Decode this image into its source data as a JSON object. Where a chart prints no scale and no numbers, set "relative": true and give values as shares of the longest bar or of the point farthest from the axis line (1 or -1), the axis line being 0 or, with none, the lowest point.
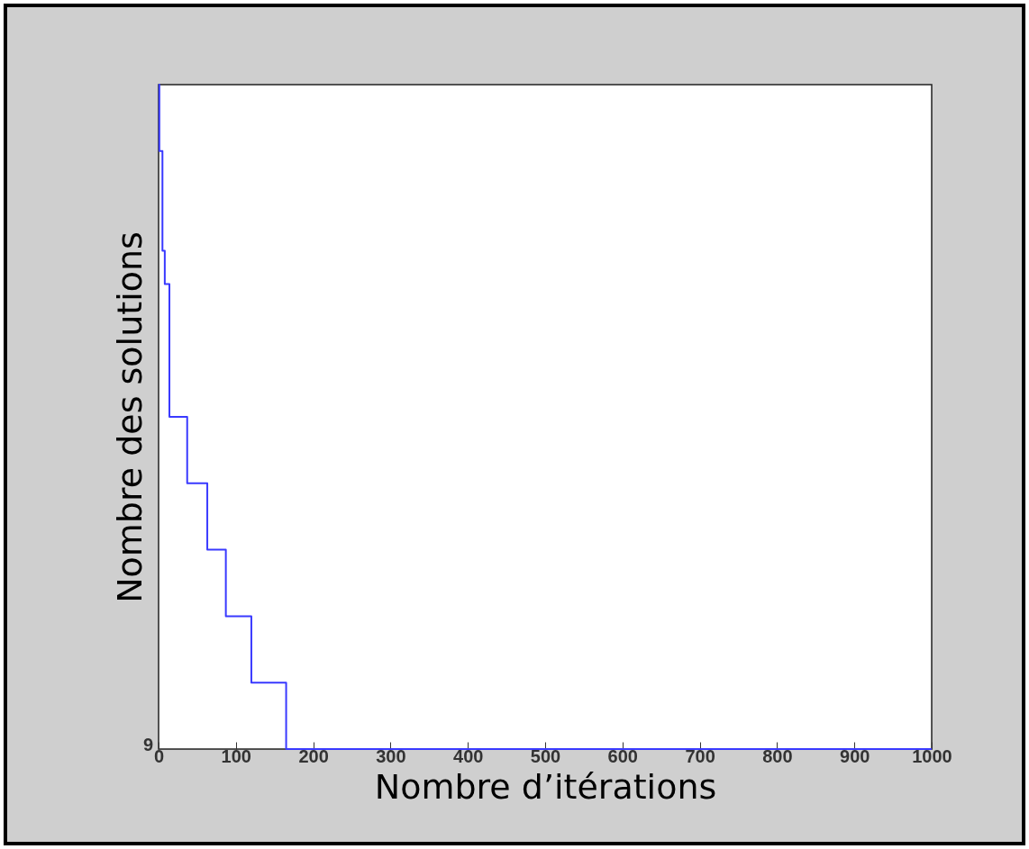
{
  "chart_data": {
    "type": "step",
    "xlabel": "Nombre d’itérations",
    "ylabel": "Nombre des solutions",
    "relative": true,
    "xlim": [
      0,
      1000
    ],
    "xticks": [
      0,
      100,
      200,
      300,
      400,
      500,
      600,
      700,
      800,
      900,
      1000
    ],
    "annotations": [
      "9"
    ],
    "grid": false,
    "marker": "none",
    "line_style": "solid",
    "series": [
      {
        "color": "#3a3aff",
        "x": [
          0,
          1,
          5,
          8,
          14,
          37,
          63,
          87,
          120,
          165,
          1000
        ],
        "values": [
          1,
          0.9,
          0.75,
          0.7,
          0.5,
          0.4,
          0.3,
          0.2,
          0.1,
          0,
          0
        ]
      }
    ]
  }
}
